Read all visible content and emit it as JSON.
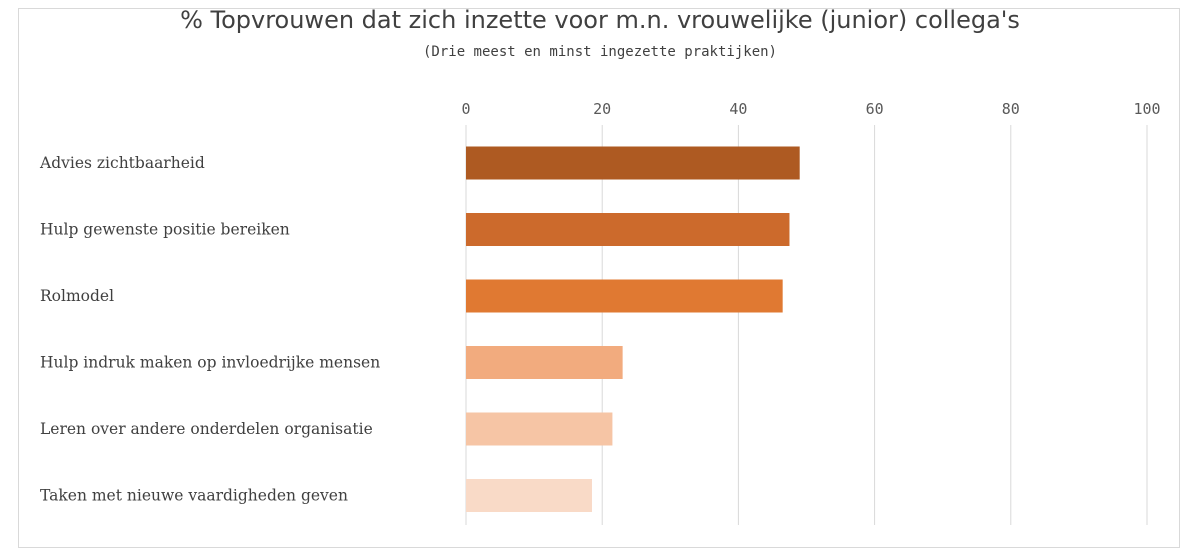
{
  "chart_data": {
    "type": "bar",
    "orientation": "horizontal",
    "title": "% Topvrouwen dat zich inzette voor m.n. vrouwelijke (junior) collega's",
    "subtitle": "(Drie meest en minst ingezette praktijken)",
    "categories": [
      "Advies zichtbaarheid",
      "Hulp gewenste positie bereiken",
      "Rolmodel",
      "Hulp indruk maken op invloedrijke mensen",
      "Leren over andere onderdelen organisatie",
      "Taken met nieuwe vaardigheden geven"
    ],
    "values": [
      49,
      47.5,
      46.5,
      23,
      21.5,
      18.5
    ],
    "colors": [
      "#ae5a22",
      "#cc6a2c",
      "#e07932",
      "#f2ab7e",
      "#f6c5a5",
      "#f9dac7"
    ],
    "xlim": [
      0,
      100
    ],
    "xticks": [
      0,
      20,
      40,
      60,
      80,
      100
    ],
    "xaxis_position": "top",
    "grid": true,
    "legend": "none",
    "xlabel": "",
    "ylabel": ""
  }
}
